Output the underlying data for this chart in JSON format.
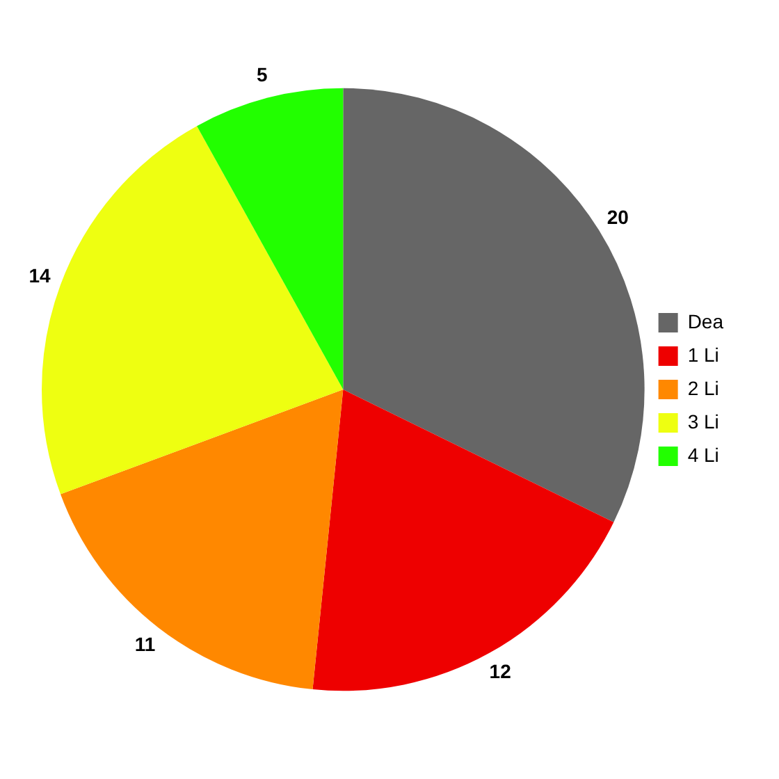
{
  "chart_data": {
    "type": "pie",
    "categories": [
      "Dea",
      "1 Li",
      "2 Li",
      "3 Li",
      "4 Li"
    ],
    "values": [
      20,
      12,
      11,
      14,
      5
    ],
    "colors": [
      "#666666",
      "#ee0000",
      "#ff8800",
      "#eeff11",
      "#22ff00"
    ],
    "data_labels": true,
    "legend": "right"
  }
}
